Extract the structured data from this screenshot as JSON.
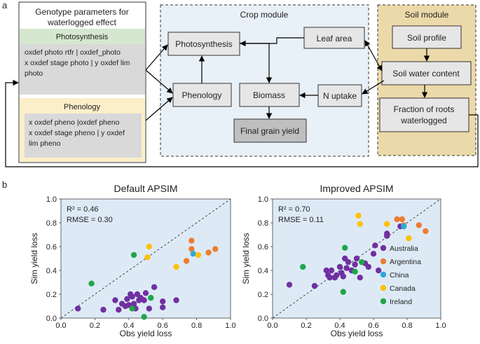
{
  "panel_a_label": "a",
  "panel_b_label": "b",
  "genotype": {
    "title_line1": "Genotype parameters for",
    "title_line2": "waterlogged effect",
    "photosynthesis_header": "Photosynthesis",
    "photo_line1": "oxdef photo rtfr | oxdef_photo",
    "photo_line2": "x oxdef stage photo | y oxdef lim",
    "photo_line3": "photo",
    "phenology_header": "Phenology",
    "pheno_line1": "x oxdef pheno |oxdef pheno",
    "pheno_line2": "x oxdef stage pheno | y oxdef",
    "pheno_line3": "lim pheno"
  },
  "crop": {
    "title": "Crop module",
    "photosynthesis": "Photosynthesis",
    "leaf_area": "Leaf area",
    "phenology": "Phenology",
    "biomass": "Biomass",
    "n_uptake": "N uptake",
    "final_grain_yield": "Final grain yield"
  },
  "soil": {
    "title": "Soil  module",
    "soil_profile": "Soil profile",
    "soil_water": "Soil water content",
    "roots_line1": "Fraction of roots",
    "roots_line2": "waterlogged"
  },
  "colors": {
    "Australia": "#7030a0",
    "Argentina": "#ed7d31",
    "China": "#2ea8d8",
    "Canada": "#ffc000",
    "Ireland": "#1fa64a",
    "plot_bg": "#ddeaf6"
  },
  "chart_data": [
    {
      "type": "scatter",
      "title": "Default APSIM",
      "xlabel": "Obs yield loss",
      "ylabel": "Sim yield loss",
      "xlim": [
        0.0,
        1.0
      ],
      "ylim": [
        0.0,
        1.0
      ],
      "xticks": [
        "0.0",
        "0.2",
        "0.4",
        "0.6",
        "0.8",
        "1.0"
      ],
      "yticks": [
        "0.0",
        "0.2",
        "0.4",
        "0.6",
        "0.8",
        "1.0"
      ],
      "stat1": "R² = 0.46",
      "stat2": "RMSE = 0.30",
      "show_legend": false,
      "series": [
        {
          "name": "Australia",
          "points": [
            [
              0.1,
              0.08
            ],
            [
              0.25,
              0.07
            ],
            [
              0.32,
              0.15
            ],
            [
              0.34,
              0.07
            ],
            [
              0.36,
              0.12
            ],
            [
              0.38,
              0.1
            ],
            [
              0.39,
              0.16
            ],
            [
              0.4,
              0.11
            ],
            [
              0.41,
              0.2
            ],
            [
              0.42,
              0.18
            ],
            [
              0.43,
              0.12
            ],
            [
              0.44,
              0.08
            ],
            [
              0.45,
              0.2
            ],
            [
              0.46,
              0.15
            ],
            [
              0.47,
              0.17
            ],
            [
              0.49,
              0.15
            ],
            [
              0.5,
              0.21
            ],
            [
              0.52,
              0.08
            ],
            [
              0.55,
              0.26
            ],
            [
              0.6,
              0.14
            ],
            [
              0.6,
              0.09
            ],
            [
              0.68,
              0.15
            ]
          ]
        },
        {
          "name": "Argentina",
          "points": [
            [
              0.74,
              0.48
            ],
            [
              0.77,
              0.58
            ],
            [
              0.77,
              0.65
            ],
            [
              0.87,
              0.55
            ],
            [
              0.91,
              0.58
            ]
          ]
        },
        {
          "name": "China",
          "points": [
            [
              0.78,
              0.54
            ]
          ]
        },
        {
          "name": "Canada",
          "points": [
            [
              0.51,
              0.51
            ],
            [
              0.52,
              0.6
            ],
            [
              0.68,
              0.43
            ],
            [
              0.81,
              0.53
            ]
          ]
        },
        {
          "name": "Ireland",
          "points": [
            [
              0.18,
              0.29
            ],
            [
              0.42,
              0.08
            ],
            [
              0.43,
              0.53
            ],
            [
              0.49,
              0.01
            ],
            [
              0.53,
              0.17
            ]
          ]
        }
      ]
    },
    {
      "type": "scatter",
      "title": "Improved APSIM",
      "xlabel": "Obs yield loss",
      "ylabel": "Sim yield loss",
      "xlim": [
        0.0,
        1.0
      ],
      "ylim": [
        0.0,
        1.0
      ],
      "xticks": [
        "0.0",
        "0.2",
        "0.4",
        "0.6",
        "0.8",
        "1.0"
      ],
      "yticks": [
        "0.0",
        "0.2",
        "0.4",
        "0.6",
        "0.8",
        "1.0"
      ],
      "stat1": "R² = 0.70",
      "stat2": "RMSE = 0.11",
      "show_legend": true,
      "legend_position": "right",
      "series": [
        {
          "name": "Australia",
          "points": [
            [
              0.1,
              0.28
            ],
            [
              0.25,
              0.27
            ],
            [
              0.32,
              0.4
            ],
            [
              0.33,
              0.36
            ],
            [
              0.34,
              0.34
            ],
            [
              0.35,
              0.4
            ],
            [
              0.37,
              0.34
            ],
            [
              0.38,
              0.36
            ],
            [
              0.4,
              0.43
            ],
            [
              0.41,
              0.38
            ],
            [
              0.42,
              0.35
            ],
            [
              0.43,
              0.5
            ],
            [
              0.44,
              0.42
            ],
            [
              0.45,
              0.47
            ],
            [
              0.47,
              0.4
            ],
            [
              0.49,
              0.45
            ],
            [
              0.5,
              0.5
            ],
            [
              0.52,
              0.34
            ],
            [
              0.55,
              0.46
            ],
            [
              0.57,
              0.43
            ],
            [
              0.6,
              0.54
            ],
            [
              0.61,
              0.61
            ],
            [
              0.63,
              0.4
            ],
            [
              0.68,
              0.69
            ],
            [
              0.68,
              0.71
            ],
            [
              0.76,
              0.77
            ]
          ]
        },
        {
          "name": "Argentina",
          "points": [
            [
              0.74,
              0.83
            ],
            [
              0.77,
              0.83
            ],
            [
              0.78,
              0.78
            ],
            [
              0.87,
              0.78
            ],
            [
              0.91,
              0.73
            ]
          ]
        },
        {
          "name": "China",
          "points": [
            [
              0.78,
              0.77
            ]
          ]
        },
        {
          "name": "Canada",
          "points": [
            [
              0.51,
              0.86
            ],
            [
              0.52,
              0.79
            ],
            [
              0.68,
              0.79
            ],
            [
              0.81,
              0.67
            ]
          ]
        },
        {
          "name": "Ireland",
          "points": [
            [
              0.18,
              0.43
            ],
            [
              0.42,
              0.22
            ],
            [
              0.43,
              0.59
            ],
            [
              0.49,
              0.39
            ],
            [
              0.53,
              0.47
            ]
          ]
        }
      ]
    }
  ]
}
